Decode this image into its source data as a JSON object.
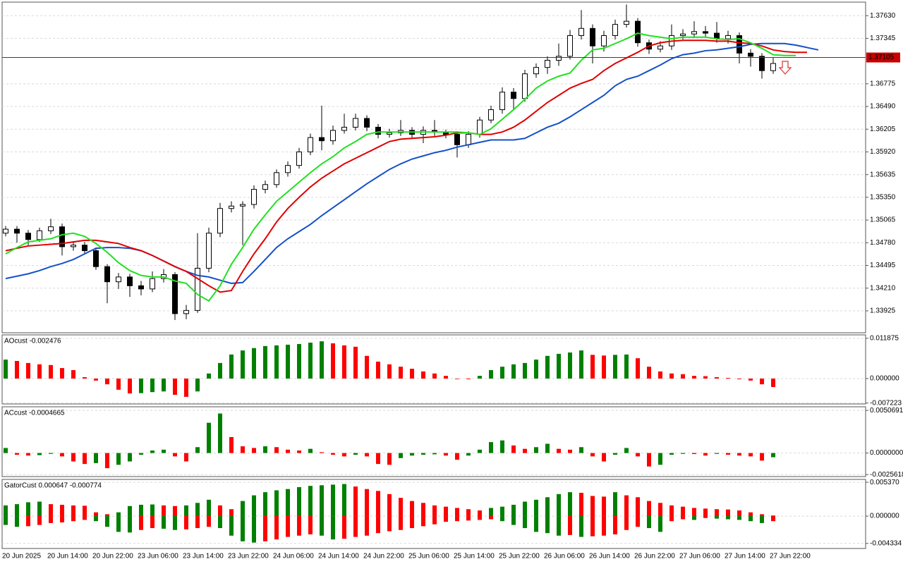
{
  "chart_data": [
    {
      "type": "candlestick",
      "categories": [
        "20 Jun 2025",
        null,
        null,
        null,
        "20 Jun 14:00",
        null,
        null,
        null,
        "20 Jun 22:00",
        null,
        null,
        null,
        "23 Jun 06:00",
        null,
        null,
        null,
        "23 Jun 14:00",
        null,
        null,
        null,
        "23 Jun 22:00",
        null,
        null,
        null,
        "24 Jun 06:00",
        null,
        null,
        null,
        "24 Jun 14:00",
        null,
        null,
        null,
        "24 Jun 22:00",
        null,
        null,
        null,
        "25 Jun 06:00",
        null,
        null,
        null,
        "25 Jun 14:00",
        null,
        null,
        null,
        "25 Jun 22:00",
        null,
        null,
        null,
        "26 Jun 06:00",
        null,
        null,
        null,
        "26 Jun 14:00",
        null,
        null,
        null,
        "26 Jun 22:00",
        null,
        null,
        null,
        "27 Jun 06:00",
        null,
        null,
        null,
        "27 Jun 14:00",
        null,
        null,
        null,
        "27 Jun 22:00",
        null,
        null,
        null,
        null
      ],
      "open": [
        1.349,
        1.3495,
        1.349,
        1.3482,
        1.3493,
        1.3498,
        1.3473,
        1.3475,
        1.3468,
        1.3448,
        1.3429,
        1.3435,
        1.3424,
        1.342,
        1.3433,
        1.3438,
        1.3389,
        1.3393,
        1.3446,
        1.349,
        1.3521,
        1.3524,
        1.3526,
        1.3545,
        1.3551,
        1.3566,
        1.3575,
        1.3592,
        1.361,
        1.3606,
        1.3619,
        1.3623,
        1.3634,
        1.3623,
        1.3614,
        1.3616,
        1.3619,
        1.3614,
        1.3619,
        1.3617,
        1.3614,
        1.3601,
        1.3614,
        1.3632,
        1.3645,
        1.3667,
        1.3659,
        1.369,
        1.3698,
        1.3707,
        1.3712,
        1.3738,
        1.3747,
        1.3725,
        1.3738,
        1.3752,
        1.3756,
        1.3729,
        1.3721,
        1.3725,
        1.3738,
        1.374,
        1.3743,
        1.3741,
        1.3734,
        1.3738,
        1.3716,
        1.3712,
        1.3694,
        null,
        null,
        null,
        null
      ],
      "high": [
        1.3499,
        1.3499,
        1.3494,
        1.3497,
        1.3508,
        1.3502,
        1.348,
        1.3479,
        1.3472,
        1.3451,
        1.344,
        1.3439,
        1.343,
        1.3442,
        1.3445,
        1.3441,
        1.34,
        1.349,
        1.3497,
        1.3528,
        1.353,
        1.353,
        1.355,
        1.3556,
        1.357,
        1.358,
        1.3597,
        1.3615,
        1.365,
        1.3625,
        1.364,
        1.364,
        1.3638,
        1.3627,
        1.3621,
        1.3632,
        1.3623,
        1.3624,
        1.3632,
        1.362,
        1.3618,
        1.3618,
        1.3636,
        1.365,
        1.3673,
        1.3672,
        1.3695,
        1.3703,
        1.3712,
        1.3728,
        1.3745,
        1.377,
        1.3752,
        1.3744,
        1.3758,
        1.3777,
        1.376,
        1.3733,
        1.3731,
        1.3752,
        1.3746,
        1.3756,
        1.375,
        1.3755,
        1.3744,
        1.3742,
        1.3721,
        1.3716,
        1.371,
        null,
        null,
        null,
        null
      ],
      "low": [
        1.3486,
        1.3478,
        1.3475,
        1.3479,
        1.3489,
        1.3462,
        1.3468,
        1.3464,
        1.3444,
        1.3402,
        1.342,
        1.341,
        1.3412,
        1.3416,
        1.3428,
        1.3381,
        1.3382,
        1.339,
        1.3441,
        1.3485,
        1.3516,
        1.3475,
        1.3521,
        1.354,
        1.3547,
        1.3561,
        1.3571,
        1.3588,
        1.3594,
        1.3601,
        1.3615,
        1.3619,
        1.3618,
        1.3609,
        1.361,
        1.3612,
        1.3609,
        1.3603,
        1.3612,
        1.3609,
        1.3585,
        1.3597,
        1.361,
        1.3628,
        1.364,
        1.3645,
        1.3655,
        1.3685,
        1.369,
        1.37,
        1.3708,
        1.3733,
        1.3703,
        1.3718,
        1.3733,
        1.3748,
        1.3724,
        1.3715,
        1.3717,
        1.372,
        1.3733,
        1.3735,
        1.3736,
        1.3729,
        1.3728,
        1.3703,
        1.3699,
        1.3684,
        1.369,
        null,
        null,
        null,
        null
      ],
      "close": [
        1.3495,
        1.349,
        1.3482,
        1.3493,
        1.3498,
        1.3473,
        1.3475,
        1.3468,
        1.3448,
        1.3429,
        1.3435,
        1.3424,
        1.342,
        1.3433,
        1.3438,
        1.3389,
        1.3393,
        1.3446,
        1.349,
        1.3521,
        1.3524,
        1.3526,
        1.3545,
        1.3551,
        1.3566,
        1.3575,
        1.3592,
        1.361,
        1.3606,
        1.3619,
        1.3623,
        1.3634,
        1.3623,
        1.3614,
        1.3616,
        1.3619,
        1.3614,
        1.3619,
        1.3617,
        1.3614,
        1.3601,
        1.3614,
        1.3632,
        1.3645,
        1.3667,
        1.3659,
        1.369,
        1.3698,
        1.3707,
        1.3712,
        1.3738,
        1.3747,
        1.3725,
        1.3738,
        1.3752,
        1.3756,
        1.3729,
        1.3721,
        1.3725,
        1.3738,
        1.374,
        1.3743,
        1.3741,
        1.3734,
        1.3738,
        1.3716,
        1.3712,
        1.3694,
        1.3703,
        null,
        null,
        null,
        null
      ],
      "up_color": "#ffffff",
      "down_color": "#000000",
      "lines": [
        {
          "color": "#1450c8",
          "values": [
            1.3433,
            1.3436,
            1.3439,
            1.3443,
            1.3448,
            1.3452,
            1.3457,
            1.3464,
            1.3471,
            1.3472,
            1.3472,
            1.3471,
            1.3468,
            1.3462,
            1.3455,
            1.3448,
            1.3442,
            1.3437,
            1.3435,
            1.3431,
            1.3427,
            1.3428,
            1.3442,
            1.3457,
            1.3472,
            1.3483,
            1.3492,
            1.3501,
            1.3512,
            1.3522,
            1.3532,
            1.3542,
            1.3552,
            1.3561,
            1.357,
            1.3577,
            1.3583,
            1.3587,
            1.3591,
            1.3594,
            1.3598,
            1.3601,
            1.3604,
            1.3607,
            1.3607,
            1.3607,
            1.3609,
            1.3616,
            1.3623,
            1.3628,
            1.3636,
            1.3645,
            1.3654,
            1.3663,
            1.3675,
            1.3683,
            1.3687,
            1.3694,
            1.3701,
            1.3709,
            1.3714,
            1.3716,
            1.3719,
            1.372,
            1.3722,
            1.3724,
            1.3727,
            1.3728,
            1.3728,
            1.3728,
            1.3726,
            1.3723,
            1.372
          ]
        },
        {
          "color": "#e00000",
          "values": [
            1.3468,
            1.3471,
            1.3474,
            1.3475,
            1.3476,
            1.3477,
            1.3479,
            1.3481,
            1.3481,
            1.3479,
            1.3477,
            1.3472,
            1.3468,
            1.3462,
            1.3455,
            1.3448,
            1.3442,
            1.3433,
            1.3424,
            1.3416,
            1.3418,
            1.3442,
            1.3464,
            1.3483,
            1.3504,
            1.3521,
            1.3535,
            1.3548,
            1.3559,
            1.3568,
            1.3577,
            1.3584,
            1.3591,
            1.3598,
            1.3605,
            1.3608,
            1.3609,
            1.361,
            1.3611,
            1.3613,
            1.3616,
            1.3616,
            1.3614,
            1.3614,
            1.3617,
            1.3623,
            1.3632,
            1.3643,
            1.3654,
            1.3663,
            1.3672,
            1.3678,
            1.3683,
            1.3694,
            1.3703,
            1.371,
            1.3717,
            1.3725,
            1.3729,
            1.3731,
            1.3732,
            1.3732,
            1.3732,
            1.3731,
            1.3731,
            1.3729,
            1.3728,
            1.3725,
            1.372,
            1.3718,
            1.3717,
            1.3717,
            null
          ]
        },
        {
          "color": "#22e022",
          "values": [
            1.3464,
            1.3472,
            1.3479,
            1.3481,
            1.3483,
            1.3488,
            1.349,
            1.3486,
            1.3477,
            1.3466,
            1.3453,
            1.3443,
            1.3437,
            1.3435,
            1.3435,
            1.343,
            1.3427,
            1.3413,
            1.3405,
            1.3424,
            1.3451,
            1.3472,
            1.3495,
            1.3513,
            1.353,
            1.3542,
            1.3554,
            1.3566,
            1.3577,
            1.3586,
            1.3597,
            1.3605,
            1.3614,
            1.3617,
            1.3617,
            1.3617,
            1.3617,
            1.3617,
            1.3617,
            1.3617,
            1.3617,
            1.3616,
            1.3614,
            1.3621,
            1.3633,
            1.3645,
            1.3658,
            1.3672,
            1.3681,
            1.3687,
            1.3691,
            1.3707,
            1.372,
            1.3722,
            1.3728,
            1.3734,
            1.3741,
            1.3738,
            1.3736,
            1.3734,
            1.3736,
            1.3736,
            1.3736,
            1.3734,
            1.3733,
            1.3734,
            1.3729,
            1.3722,
            1.3714,
            1.3713,
            1.3713,
            null,
            null
          ]
        }
      ],
      "price_line": 1.37105,
      "price_line_color": "#c80000",
      "ylim": [
        1.3365,
        1.378
      ],
      "yticks": [
        {
          "value": 1.3763,
          "label": "1.37630"
        },
        1.37345,
        1.36775,
        {
          "value": 1.3649,
          "label": "1.36490"
        },
        1.36205,
        {
          "value": 1.3592,
          "label": "1.35920"
        },
        1.35635,
        {
          "value": 1.3535,
          "label": "1.35350"
        },
        1.35065,
        {
          "value": 1.3478,
          "label": "1.34780"
        },
        1.34495,
        {
          "value": 1.3421,
          "label": "1.34210"
        },
        1.33925
      ],
      "grid": true
    },
    {
      "type": "bar",
      "title": "AOcust -0.002476",
      "values": [
        0.0056,
        0.0052,
        0.0046,
        0.0042,
        0.004,
        0.0031,
        0.0025,
        0.0004,
        -0.0006,
        -0.0017,
        -0.0033,
        -0.0044,
        -0.0043,
        -0.004,
        -0.0038,
        -0.0048,
        -0.0054,
        -0.0038,
        0.0015,
        0.0046,
        0.0071,
        0.0083,
        0.009,
        0.0096,
        0.0098,
        0.01,
        0.0102,
        0.0106,
        0.011,
        0.0104,
        0.0098,
        0.0094,
        0.0067,
        0.005,
        0.0042,
        0.0035,
        0.0029,
        0.0021,
        0.0015,
        0.0008,
        -0.0001,
        -0.0002,
        0.0008,
        0.0025,
        0.0035,
        0.0042,
        0.0046,
        0.0056,
        0.0067,
        0.0073,
        0.0077,
        0.0083,
        0.007,
        0.0068,
        0.007,
        0.0071,
        0.006,
        0.0035,
        0.0021,
        0.0015,
        0.0013,
        0.0008,
        0.0007,
        0.0004,
        0.0002,
        -0.0002,
        -0.0006,
        -0.0017,
        -0.0025
      ],
      "up_color": "#008000",
      "down_color": "#ff0000",
      "ylim": [
        -0.0075,
        0.0129
      ],
      "yticks": [
        0.011875,
        {
          "value": 0,
          "label": "0.000000"
        },
        -0.007223
      ],
      "grid": true
    },
    {
      "type": "bar",
      "title": "ACcust -0.0004665",
      "values": [
        0.0006,
        -0.0002,
        -0.0003,
        -0.00025,
        -0.0001,
        -0.0004,
        -0.001,
        -0.0013,
        -0.0012,
        -0.0018,
        -0.0014,
        -0.001,
        -0.0002,
        0.0003,
        0.0004,
        -0.0004,
        -0.001,
        0.0007,
        0.0036,
        0.0047,
        0.0019,
        0.0008,
        0.0006,
        0.0008,
        0.0007,
        0.0004,
        0.0003,
        0.0005,
        0.0001,
        -0.0002,
        -0.0004,
        -0.0002,
        -0.0004,
        -0.0013,
        -0.0014,
        -0.0006,
        -0.0003,
        -0.0002,
        -0.00015,
        -0.0003,
        -0.0008,
        -0.0003,
        0.0004,
        0.0013,
        0.0015,
        0.0009,
        0.0005,
        0.0007,
        0.0011,
        0.0005,
        0.0004,
        0.0007,
        -0.0004,
        -0.001,
        -0.0002,
        0.0006,
        -0.0004,
        -0.0016,
        -0.0014,
        -0.0002,
        -0.0001,
        -0.00012,
        -0.0003,
        -0.0001,
        -0.0002,
        -0.0003,
        -0.0004,
        -0.0009,
        -0.0005
      ],
      "up_color": "#008000",
      "down_color": "#ff0000",
      "ylim": [
        -0.0028,
        0.0055
      ],
      "yticks": [
        0.0050691,
        {
          "value": 0,
          "label": "0.0000000"
        },
        -0.0025618
      ],
      "grid": true
    },
    {
      "type": "gator",
      "title": "GatorCust 0.000647 -0.000774",
      "upper": [
        0.0017,
        0.0019,
        0.0022,
        0.0023,
        0.0019,
        0.0018,
        0.0017,
        0.00165,
        0.0006,
        0.0003,
        0.0006,
        0.0016,
        0.0018,
        0.00185,
        0.0017,
        0.0016,
        0.0017,
        0.0021,
        0.0026,
        0.0017,
        0.0011,
        0.0024,
        0.0033,
        0.0038,
        0.0041,
        0.0043,
        0.0046,
        0.0048,
        0.0049,
        0.005,
        0.0051,
        0.0047,
        0.0043,
        0.004,
        0.0035,
        0.0029,
        0.0024,
        0.0021,
        0.0017,
        0.0015,
        0.0013,
        0.0011,
        0.0009,
        0.0013,
        0.0015,
        0.0018,
        0.0023,
        0.0026,
        0.003,
        0.0035,
        0.0038,
        0.0037,
        0.0032,
        0.0031,
        0.0038,
        0.0033,
        0.003,
        0.0024,
        0.0021,
        0.0017,
        0.0015,
        0.0013,
        0.0012,
        0.0011,
        0.00105,
        0.0009,
        0.0006,
        0.0003,
        0.0001
      ],
      "lower": [
        -0.0014,
        -0.0017,
        -0.0016,
        -0.0014,
        -0.0011,
        -0.001,
        -0.0008,
        -0.0006,
        -0.0008,
        -0.0017,
        -0.0025,
        -0.0026,
        -0.0022,
        -0.0019,
        -0.002,
        -0.0022,
        -0.0021,
        -0.0019,
        -0.0017,
        -0.0019,
        -0.0031,
        -0.004,
        -0.0042,
        -0.004,
        -0.0037,
        -0.0033,
        -0.0031,
        -0.0029,
        -0.0031,
        -0.0037,
        -0.0036,
        -0.0033,
        -0.0031,
        -0.0027,
        -0.0024,
        -0.0022,
        -0.0019,
        -0.0016,
        -0.0013,
        -0.0009,
        -0.0008,
        -0.0007,
        -0.0006,
        -0.0005,
        -0.0008,
        -0.0014,
        -0.0019,
        -0.0025,
        -0.0027,
        -0.0031,
        -0.003,
        -0.0033,
        -0.0032,
        -0.0031,
        -0.0029,
        -0.0022,
        -0.0017,
        -0.0019,
        -0.0025,
        -0.0008,
        -0.0005,
        -0.0006,
        -0.0003,
        -0.0004,
        -0.0005,
        -0.0006,
        -0.0008,
        -0.0011,
        -0.0008
      ],
      "up_color": "#008000",
      "down_color": "#ff0000",
      "ylim": [
        -0.00514,
        0.00583
      ],
      "yticks": [
        {
          "value": 0.00537,
          "label": "0.005370"
        },
        {
          "value": 0,
          "label": "0.000000"
        },
        -0.004334
      ],
      "grid": true
    }
  ]
}
